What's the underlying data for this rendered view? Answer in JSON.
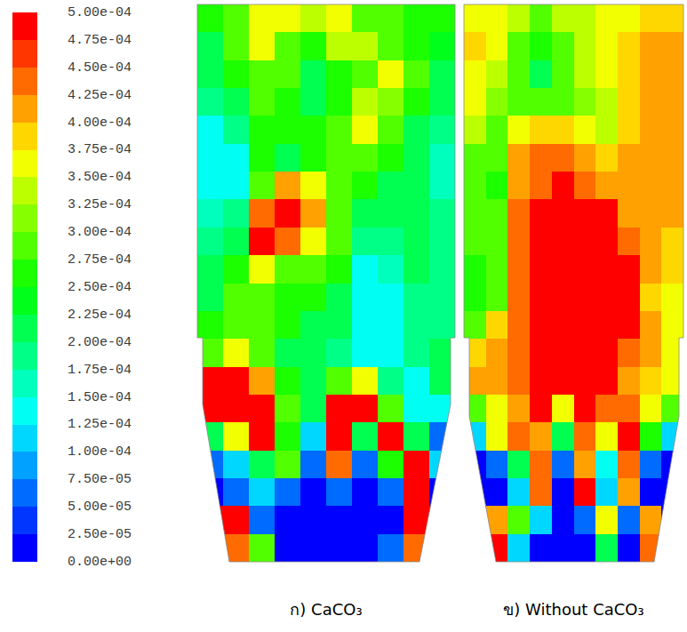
{
  "chart_data": {
    "type": "heatmap",
    "colorbar": {
      "zlim": [
        0,
        0.0005
      ],
      "ticks": [
        {
          "value": 0,
          "label": "0.00e+00"
        },
        {
          "value": 2.5e-05,
          "label": "2.50e-05"
        },
        {
          "value": 5e-05,
          "label": "5.00e-05"
        },
        {
          "value": 7.5e-05,
          "label": "7.50e-05"
        },
        {
          "value": 0.0001,
          "label": "1.00e-04"
        },
        {
          "value": 0.000125,
          "label": "1.25e-04"
        },
        {
          "value": 0.00015,
          "label": "1.50e-04"
        },
        {
          "value": 0.000175,
          "label": "1.75e-04"
        },
        {
          "value": 0.0002,
          "label": "2.00e-04"
        },
        {
          "value": 0.000225,
          "label": "2.25e-04"
        },
        {
          "value": 0.00025,
          "label": "2.50e-04"
        },
        {
          "value": 0.000275,
          "label": "2.75e-04"
        },
        {
          "value": 0.0003,
          "label": "3.00e-04"
        },
        {
          "value": 0.000325,
          "label": "3.25e-04"
        },
        {
          "value": 0.00035,
          "label": "3.50e-04"
        },
        {
          "value": 0.000375,
          "label": "3.75e-04"
        },
        {
          "value": 0.0004,
          "label": "4.00e-04"
        },
        {
          "value": 0.000425,
          "label": "4.25e-04"
        },
        {
          "value": 0.00045,
          "label": "4.50e-04"
        },
        {
          "value": 0.000475,
          "label": "4.75e-04"
        },
        {
          "value": 0.0005,
          "label": "5.00e-04"
        }
      ]
    },
    "panels": [
      {
        "title": "ก) CaCO₃",
        "cells": [
          [
            0.00025,
            0.0003,
            0.00035,
            0.00035,
            0.00033,
            0.00035,
            0.0003,
            0.00028,
            0.00027,
            0.00025
          ],
          [
            0.00022,
            0.0003,
            0.00035,
            0.0003,
            0.00025,
            0.00033,
            0.00033,
            0.00028,
            0.00025,
            0.00023
          ],
          [
            0.0002,
            0.00025,
            0.0003,
            0.00028,
            0.00022,
            0.00025,
            0.0003,
            0.00035,
            0.00028,
            0.00022
          ],
          [
            0.00018,
            0.00022,
            0.0003,
            0.00027,
            0.0002,
            0.00025,
            0.00033,
            0.00032,
            0.00025,
            0.0002
          ],
          [
            0.00015,
            0.00018,
            0.00027,
            0.00025,
            0.00025,
            0.0003,
            0.00035,
            0.0003,
            0.00022,
            0.00018
          ],
          [
            0.00015,
            0.00015,
            0.00025,
            0.00022,
            0.00027,
            0.0003,
            0.00028,
            0.00025,
            0.0002,
            0.00017
          ],
          [
            0.00015,
            0.00015,
            0.0003,
            0.0004,
            0.00035,
            0.00028,
            0.00025,
            0.00022,
            0.0002,
            0.00017
          ],
          [
            0.00017,
            0.00018,
            0.00045,
            0.0005,
            0.00042,
            0.0003,
            0.00022,
            0.0002,
            0.0002,
            0.00018
          ],
          [
            0.00018,
            0.0002,
            0.0005,
            0.00045,
            0.00035,
            0.00028,
            0.00018,
            0.00018,
            0.0002,
            0.00018
          ],
          [
            0.0002,
            0.00025,
            0.00035,
            0.0003,
            0.0003,
            0.00025,
            0.00015,
            0.00017,
            0.0002,
            0.00018
          ],
          [
            0.00022,
            0.00028,
            0.0003,
            0.00027,
            0.00025,
            0.00022,
            0.00015,
            0.00015,
            0.00018,
            0.00018
          ],
          [
            0.00025,
            0.0003,
            0.00028,
            0.00025,
            0.00022,
            0.0002,
            0.00013,
            0.00015,
            0.00018,
            0.00018
          ],
          [
            0.0003,
            0.00035,
            0.0003,
            0.00022,
            0.0002,
            0.00018,
            0.00013,
            0.00015,
            0.00018,
            0.0002
          ],
          [
            0.0005,
            0.0005,
            0.0004,
            0.00025,
            0.00022,
            0.0003,
            0.00035,
            0.00018,
            0.00015,
            0.0002
          ],
          [
            0.0005,
            0.0005,
            0.0005,
            0.0003,
            0.00022,
            0.0005,
            0.0005,
            0.0003,
            0.00015,
            0.00015
          ],
          [
            0.0002,
            0.00035,
            0.0005,
            0.00025,
            0.0001,
            0.0005,
            0.0002,
            0.0005,
            0.0002,
            5e-05
          ],
          [
            5e-05,
            0.0001,
            0.0002,
            0.0003,
            5e-05,
            0.00045,
            5e-05,
            0.00025,
            0.0005,
            0.0001
          ],
          [
            0,
            5e-05,
            0.0001,
            5e-05,
            0,
            5e-05,
            0,
            5e-05,
            0.0005,
            0
          ],
          [
            0.0005,
            0.0005,
            5e-05,
            0,
            0,
            0,
            0,
            0,
            0.0005,
            0.0005
          ],
          [
            0.0005,
            0.00045,
            0.0003,
            0,
            0,
            0,
            0,
            5e-05,
            0.00045,
            0.0005
          ]
        ]
      },
      {
        "title": "ข) Without CaCO₃",
        "cells": [
          [
            0.00035,
            0.00035,
            0.00033,
            0.0003,
            0.00033,
            0.00033,
            0.00035,
            0.00035,
            0.00038,
            0.00038
          ],
          [
            0.00038,
            0.00035,
            0.0003,
            0.00025,
            0.0003,
            0.00033,
            0.00035,
            0.00038,
            0.0004,
            0.0004
          ],
          [
            0.00037,
            0.00033,
            0.0003,
            0.00022,
            0.00028,
            0.00033,
            0.00035,
            0.00038,
            0.0004,
            0.0004
          ],
          [
            0.00035,
            0.00032,
            0.0003,
            0.00028,
            0.0003,
            0.00032,
            0.00033,
            0.00038,
            0.00042,
            0.00042
          ],
          [
            0.00033,
            0.0003,
            0.00035,
            0.00038,
            0.00038,
            0.00035,
            0.00033,
            0.00038,
            0.00042,
            0.00042
          ],
          [
            0.0003,
            0.00028,
            0.0004,
            0.00045,
            0.00045,
            0.00042,
            0.00038,
            0.0004,
            0.00042,
            0.00042
          ],
          [
            0.0003,
            0.00025,
            0.0004,
            0.00045,
            0.00048,
            0.00045,
            0.0004,
            0.0004,
            0.00042,
            0.0004
          ],
          [
            0.0003,
            0.0003,
            0.00045,
            0.0005,
            0.0005,
            0.0005,
            0.0005,
            0.00042,
            0.0004,
            0.0004
          ],
          [
            0.00028,
            0.0003,
            0.00045,
            0.0005,
            0.0005,
            0.0005,
            0.0005,
            0.00045,
            0.0004,
            0.00038
          ],
          [
            0.00025,
            0.0003,
            0.00045,
            0.0005,
            0.0005,
            0.0005,
            0.0005,
            0.0005,
            0.0004,
            0.00038
          ],
          [
            0.00025,
            0.0003,
            0.00045,
            0.0005,
            0.0005,
            0.0005,
            0.0005,
            0.0005,
            0.00038,
            0.00035
          ],
          [
            0.0003,
            0.00038,
            0.00045,
            0.0005,
            0.0005,
            0.0005,
            0.0005,
            0.0005,
            0.0004,
            0.00035
          ],
          [
            0.00038,
            0.0004,
            0.00045,
            0.0005,
            0.0005,
            0.0005,
            0.0005,
            0.00045,
            0.0004,
            0.00035
          ],
          [
            0.0004,
            0.00042,
            0.00045,
            0.0005,
            0.0005,
            0.0005,
            0.0005,
            0.00042,
            0.00038,
            0.00035
          ],
          [
            0.0003,
            0.00035,
            0.0004,
            0.0005,
            0.00035,
            0.0005,
            0.00045,
            0.00045,
            0.00035,
            0.0003
          ],
          [
            0.0001,
            0.00035,
            0.00045,
            0.0004,
            0.0002,
            0.00045,
            0.00035,
            0.0005,
            0.00025,
            0.0001
          ],
          [
            0,
            5e-05,
            0.0002,
            0.00045,
            5e-05,
            0.0004,
            0.00015,
            0.00045,
            5e-05,
            0
          ],
          [
            0,
            0,
            0.0001,
            0.00045,
            0,
            0.0005,
            0.0001,
            0.0004,
            0,
            0
          ],
          [
            0,
            0.0004,
            0.0003,
            0.0001,
            0,
            5e-05,
            0.00035,
            5e-05,
            0.0004,
            0
          ],
          [
            0.0005,
            0.0005,
            0.0001,
            0,
            0,
            0,
            0.0002,
            0,
            0.00045,
            0.0005
          ]
        ]
      }
    ]
  }
}
